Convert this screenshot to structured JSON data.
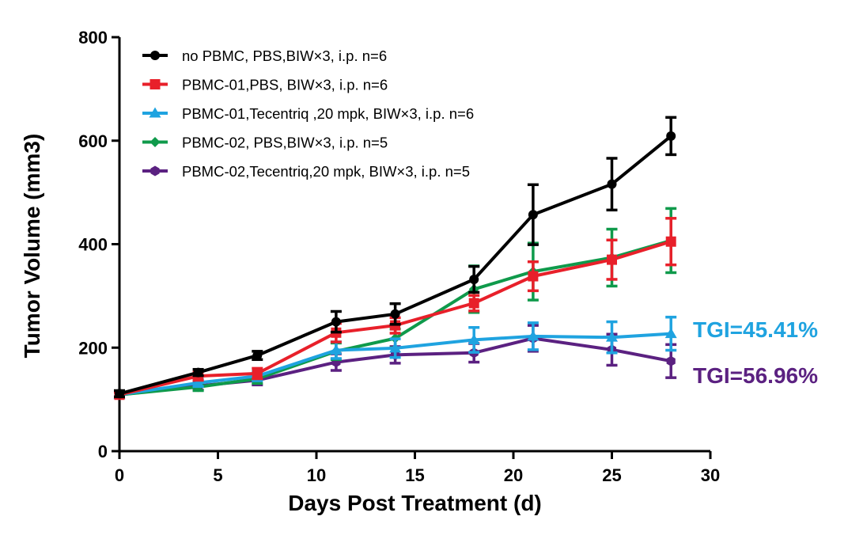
{
  "chart_data": {
    "type": "line",
    "xlabel": "Days Post Treatment (d)",
    "ylabel": "Tumor Volume (mm3)",
    "xlim": [
      0,
      30
    ],
    "ylim": [
      0,
      800
    ],
    "xticks": [
      "0",
      "5",
      "10",
      "15",
      "20",
      "25",
      "30"
    ],
    "yticks": [
      "0",
      "200",
      "400",
      "600",
      "800"
    ],
    "grid": false,
    "legend_position": "top-left",
    "x": [
      0,
      4,
      7,
      11,
      14,
      18,
      21,
      25,
      28
    ],
    "series": [
      {
        "name": "no PBMC, PBS,BIW×3, i.p. n=6",
        "color": "#000000",
        "marker": "circle",
        "values": [
          111,
          152,
          185,
          250,
          265,
          332,
          457,
          516,
          609
        ],
        "errors": [
          6,
          6,
          8,
          20,
          20,
          25,
          58,
          50,
          36
        ]
      },
      {
        "name": "PBMC-01,PBS, BIW×3, i.p. n=6",
        "color": "#e8202a",
        "marker": "square",
        "values": [
          109,
          145,
          150,
          229,
          243,
          286,
          338,
          370,
          405
        ],
        "errors": [
          5,
          8,
          10,
          18,
          15,
          15,
          28,
          38,
          45
        ]
      },
      {
        "name": "PBMC-01,Tecentriq ,20 mpk, BIW×3, i.p. n=6",
        "color": "#1fa3e0",
        "marker": "triangle",
        "values": [
          109,
          132,
          145,
          195,
          199,
          215,
          222,
          220,
          227
        ],
        "errors": [
          5,
          7,
          9,
          16,
          18,
          24,
          26,
          30,
          32
        ]
      },
      {
        "name": "PBMC-02, PBS,BIW×3, i.p. n=5",
        "color": "#0f9a4b",
        "marker": "diamond",
        "values": [
          109,
          124,
          140,
          193,
          218,
          313,
          347,
          374,
          407
        ],
        "errors": [
          5,
          7,
          9,
          16,
          18,
          45,
          55,
          55,
          62
        ]
      },
      {
        "name": "PBMC-02,Tecentriq,20 mpk, BIW×3, i.p. n=5",
        "color": "#5b2181",
        "marker": "hexagon",
        "values": [
          109,
          126,
          137,
          172,
          186,
          190,
          218,
          196,
          174
        ],
        "errors": [
          5,
          8,
          9,
          16,
          16,
          18,
          25,
          30,
          32
        ]
      }
    ],
    "annotations": [
      {
        "text": "TGI=45.41%",
        "color": "#1fa3e0"
      },
      {
        "text": "TGI=56.96%",
        "color": "#5b2181"
      }
    ]
  }
}
